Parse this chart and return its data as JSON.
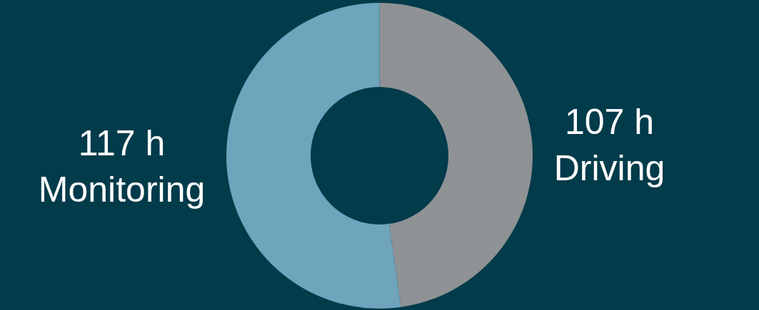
{
  "chart_data": {
    "type": "donut",
    "categories": [
      "Driving",
      "Monitoring"
    ],
    "values": [
      107,
      117
    ],
    "value_labels": [
      "107 h",
      "117 h"
    ],
    "colors": [
      "#8e9295",
      "#6ea4bc"
    ],
    "legend": false
  }
}
